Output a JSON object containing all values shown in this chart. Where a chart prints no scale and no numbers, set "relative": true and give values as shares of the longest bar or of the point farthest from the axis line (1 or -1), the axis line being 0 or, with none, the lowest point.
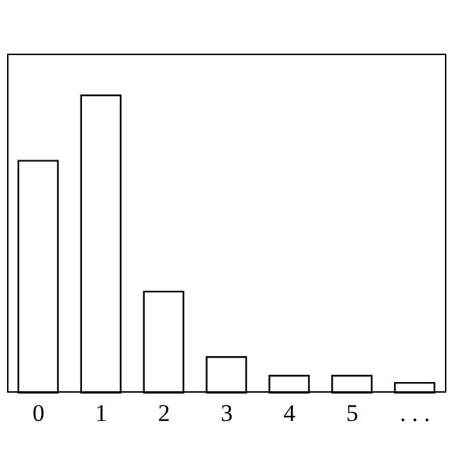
{
  "chart_data": {
    "type": "bar",
    "relative": true,
    "categories": [
      "0",
      "1",
      "2",
      "3",
      "4",
      "5",
      ". . ."
    ],
    "values": [
      0.78,
      1,
      0.34,
      0.12,
      0.057,
      0.057,
      0.033
    ],
    "color": "#ffffff"
  }
}
